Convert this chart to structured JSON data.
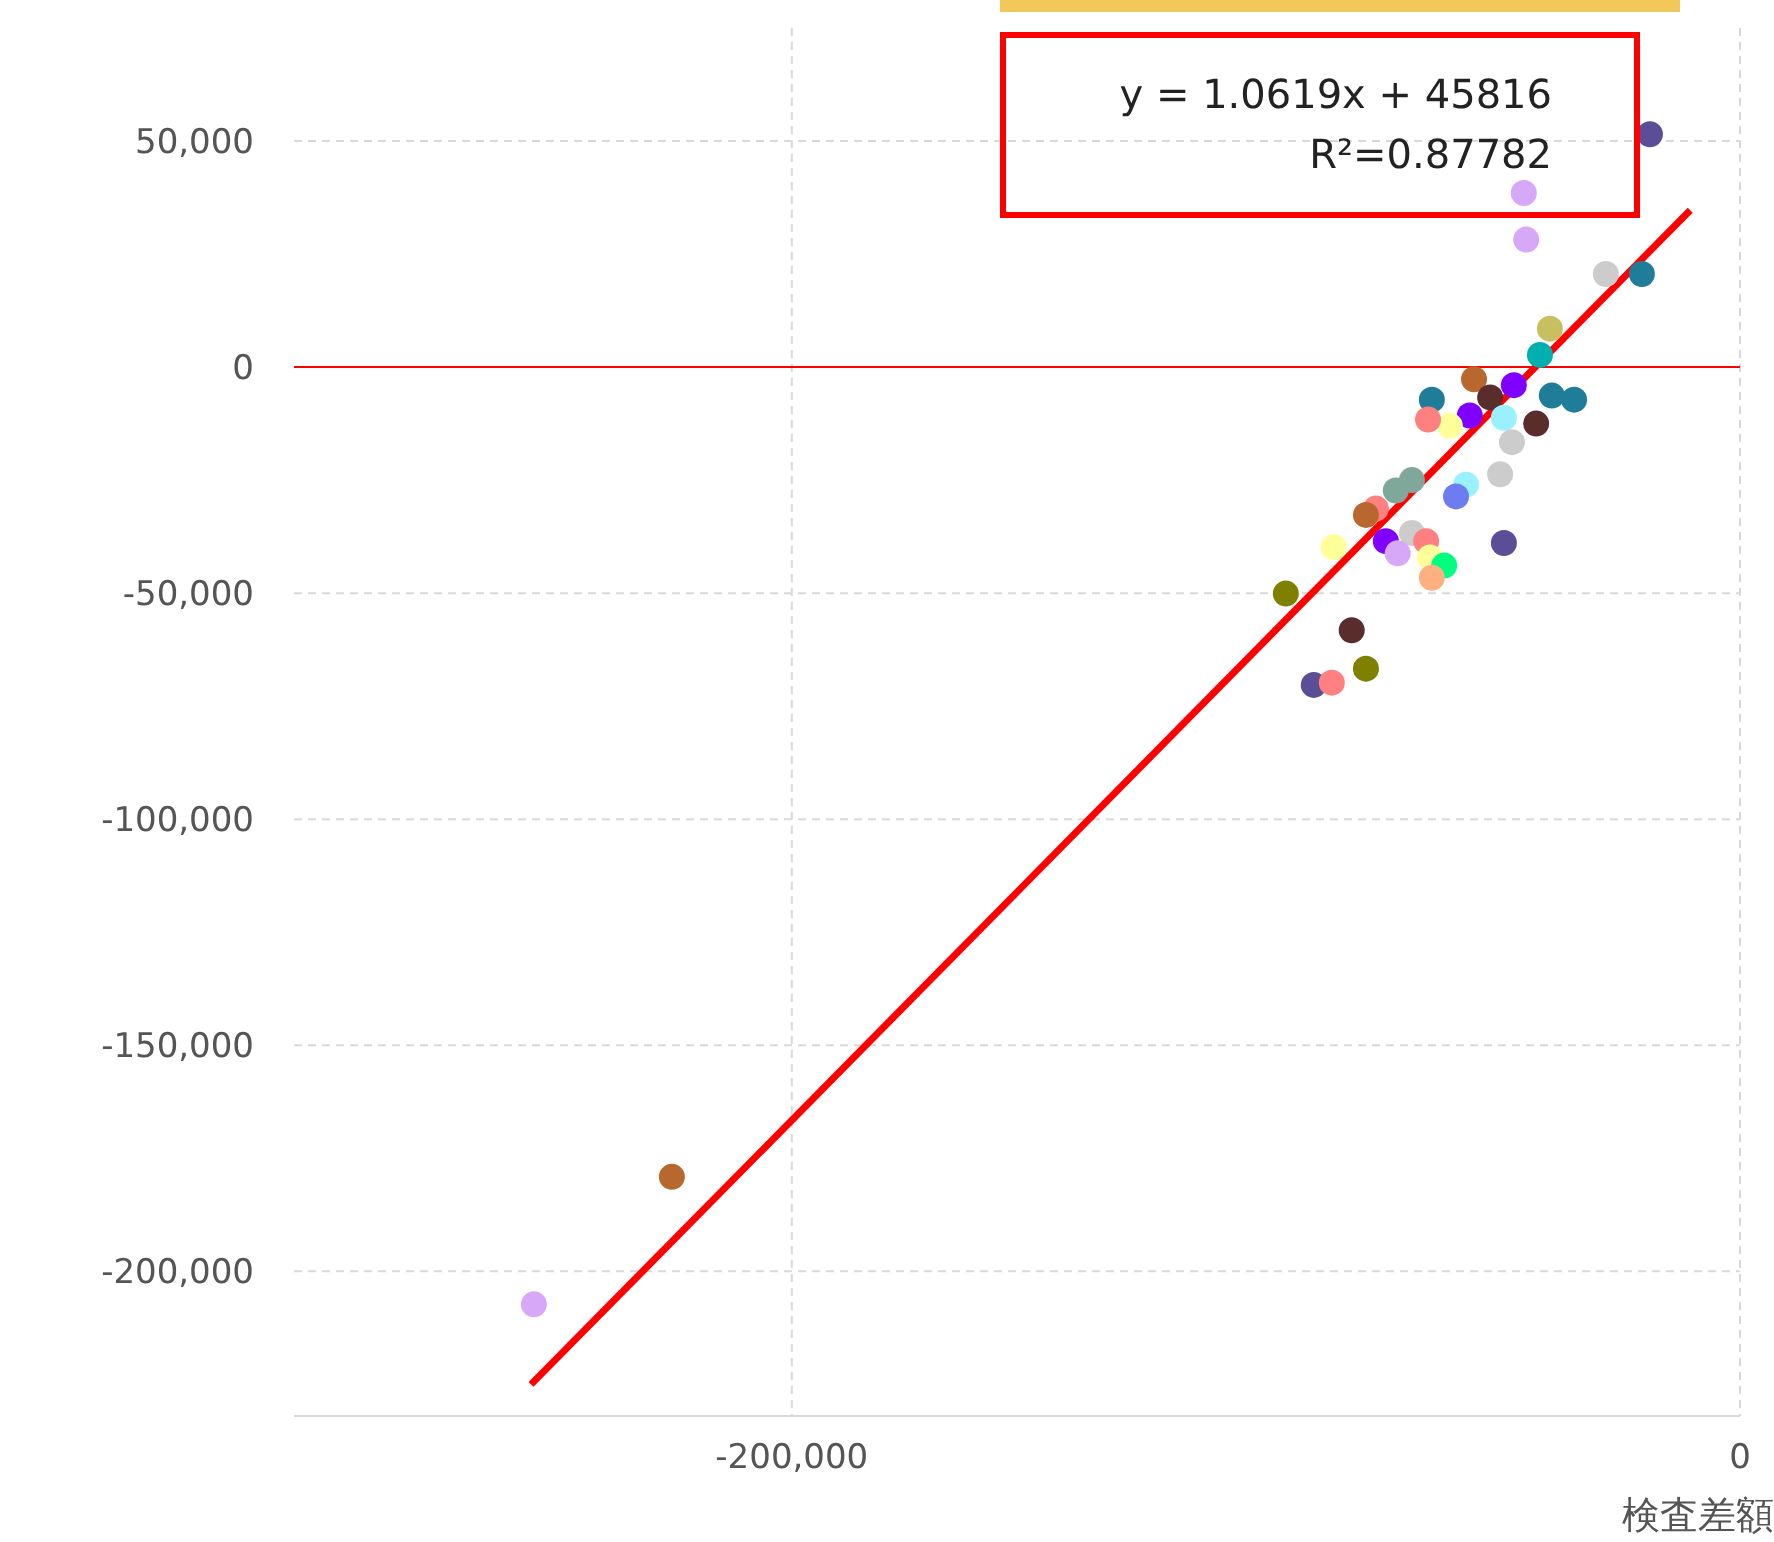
{
  "chart_data": {
    "type": "scatter",
    "xlabel": "検査差額",
    "annotations": [
      "y = 1.0619x + 45816",
      "R²=0.87782"
    ],
    "xlim": [
      -305000,
      0
    ],
    "ylim": [
      -232000,
      75000
    ],
    "xticks": [
      {
        "value": -200000,
        "label": "-200,000"
      },
      {
        "value": 0,
        "label": "0"
      }
    ],
    "yticks": [
      {
        "value": 50000,
        "label": "50,000"
      },
      {
        "value": 0,
        "label": "0"
      },
      {
        "value": -50000,
        "label": "-50,000"
      },
      {
        "value": -100000,
        "label": "-100,000"
      },
      {
        "value": -150000,
        "label": "-150,000"
      },
      {
        "value": -200000,
        "label": "-200,000"
      }
    ],
    "grid": true,
    "marker": "circle",
    "ref_lines": [
      {
        "axis": "y",
        "value": 0,
        "color": "#ff0000"
      }
    ],
    "series": [
      {
        "x": [
          -19000,
          -45600,
          -45100,
          -28300,
          -20700,
          -65000,
          -56100,
          -40100,
          -42200,
          -47700,
          -52700,
          -57000,
          -61200,
          -65800,
          -43000,
          -49800,
          -48100,
          -39700,
          -69200,
          -72600,
          -76800,
          -78900,
          -57800,
          -59900,
          -50600,
          -69200,
          -66200,
          -74700,
          -72200,
          -85700,
          -65400,
          -62400,
          -65000,
          -49800,
          -95800,
          -81900,
          -78900,
          -89900,
          -86100,
          -225300,
          -254400,
          -35000
        ],
        "values": [
          51500,
          38500,
          28200,
          20600,
          20600,
          -7200,
          -2700,
          8500,
          2700,
          -4000,
          -6700,
          -10700,
          -13000,
          -11600,
          -12500,
          -11200,
          -16600,
          -6300,
          -25000,
          -27300,
          -31300,
          -32700,
          -26000,
          -28600,
          -23700,
          -36700,
          -38500,
          -38500,
          -41200,
          -39800,
          -42100,
          -43900,
          -46600,
          -38900,
          -50100,
          -58200,
          -66700,
          -70300,
          -69800,
          -179100,
          -207300,
          -7200
        ],
        "colors": [
          "#5b4e96",
          "#d8a8f8",
          "#d8a8f8",
          "#cccccc",
          "#1f7d99",
          "#1f7d99",
          "#b8672e",
          "#c8c060",
          "#00b0b0",
          "#8000ff",
          "#5a2d2d",
          "#8000ff",
          "#ffff99",
          "#ff8080",
          "#5a2d2d",
          "#99f0ff",
          "#cccccc",
          "#1f7d99",
          "#7fa89a",
          "#7fa89a",
          "#ff8080",
          "#b8672e",
          "#99f0ff",
          "#6d7cf0",
          "#cccccc",
          "#cccccc",
          "#ff8080",
          "#8000ff",
          "#d8a8f8",
          "#ffff99",
          "#ffff99",
          "#00ff80",
          "#ffb080",
          "#5b4e96",
          "#808000",
          "#5a2d2d",
          "#808000",
          "#5b4e96",
          "#ff8080",
          "#b8672e",
          "#d8a8f8",
          "#1f7d99"
        ]
      },
      {
        "type": "line",
        "x": [
          -255000,
          -10500
        ],
        "values": [
          -225000,
          34700
        ],
        "color": "#ff0000",
        "line_style": "solid",
        "marker": "none"
      }
    ]
  }
}
